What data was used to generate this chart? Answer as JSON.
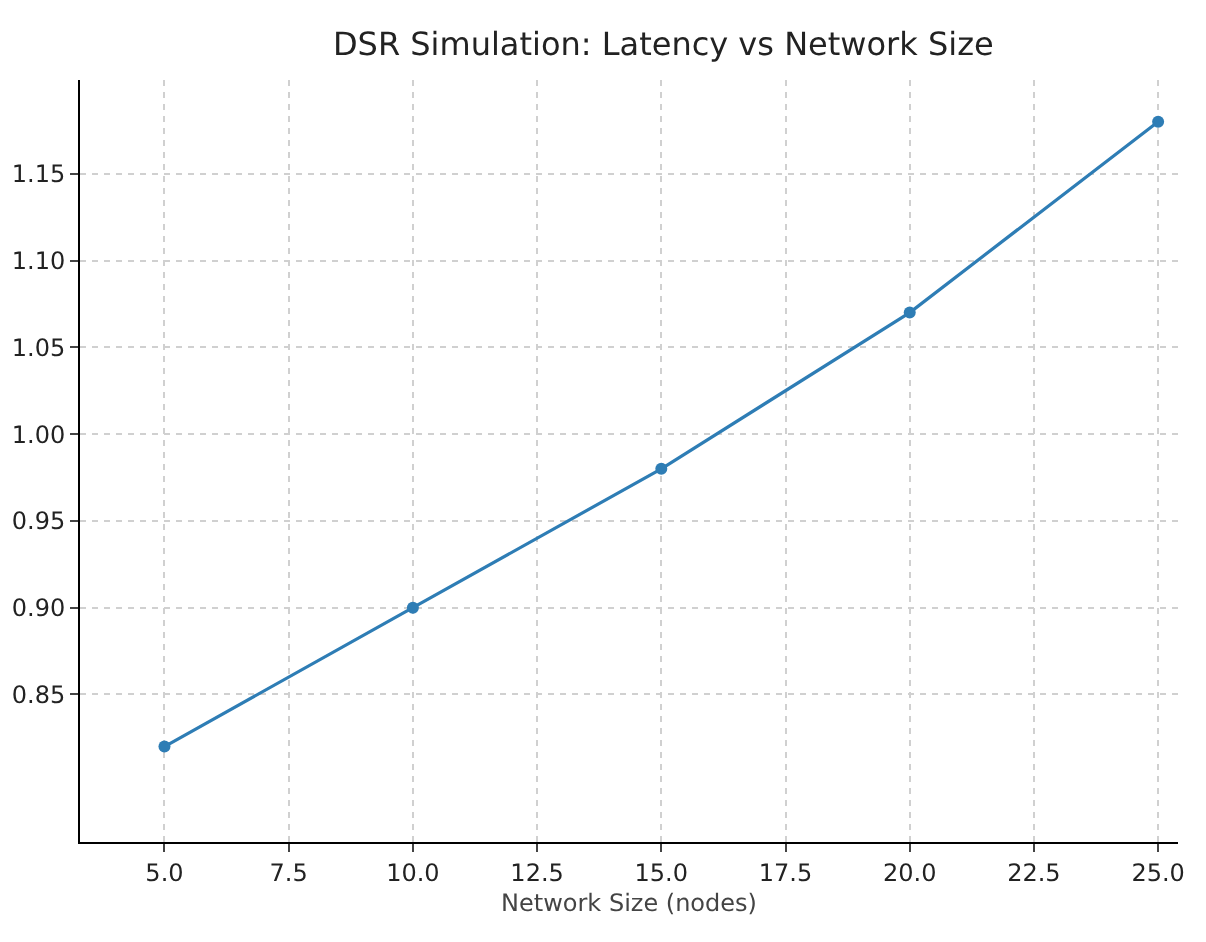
{
  "chart_data": {
    "type": "line",
    "title": "DSR Simulation: Latency vs Network Size",
    "xlabel": "Network Size (nodes)",
    "x": [
      5,
      10,
      15,
      20,
      25
    ],
    "series": [
      {
        "color": "#2e7db5",
        "values": [
          0.82,
          0.9,
          0.98,
          1.07,
          1.18
        ]
      }
    ],
    "xlim": [
      3.3,
      25.4
    ],
    "xticks": [
      {
        "value": 5,
        "label": "5.0"
      },
      {
        "value": 7.5,
        "label": "7.5"
      },
      {
        "value": 10,
        "label": "10.0"
      },
      {
        "value": 12.5,
        "label": "12.5"
      },
      {
        "value": 15,
        "label": "15.0"
      },
      {
        "value": 17.5,
        "label": "17.5"
      },
      {
        "value": 20,
        "label": "20.0"
      },
      {
        "value": 22.5,
        "label": "22.5"
      },
      {
        "value": 25,
        "label": "25.0"
      }
    ],
    "ylim": [
      0.765,
      1.204
    ],
    "yticks": [
      0.85,
      {
        "value": 0.9,
        "label": "0.90"
      },
      0.95,
      {
        "value": 1.0,
        "label": "1.00"
      },
      1.05,
      {
        "value": 1.1,
        "label": "1.10"
      },
      1.15
    ],
    "grid": true,
    "marker": "circle",
    "line_style": "solid"
  }
}
